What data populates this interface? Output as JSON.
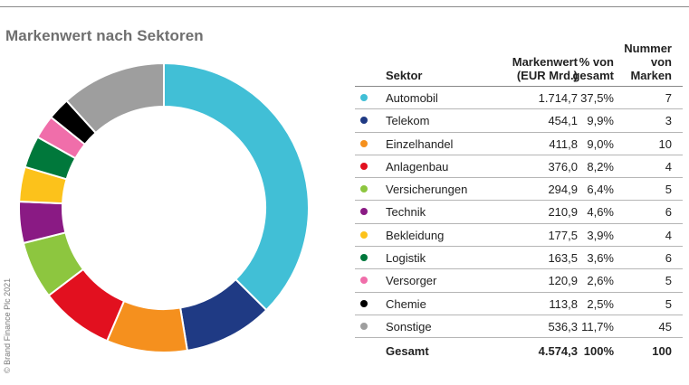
{
  "title": "Markenwert nach Sektoren",
  "copyright": "© Brand Finance Plc 2021",
  "table": {
    "headers": {
      "sektor": "Sektor",
      "markenwert_line1": "Markenwert",
      "markenwert_line2": "(EUR Mrd.)",
      "pct_line1": "% von",
      "pct_line2": "gesamt",
      "num_line1": "Nummer",
      "num_line2": "von",
      "num_line3": "Marken"
    },
    "rows": [
      {
        "name": "Automobil",
        "wert": "1.714,7",
        "pct": "37,5%",
        "num": "7",
        "color": "#41bfd6"
      },
      {
        "name": "Telekom",
        "wert": "454,1",
        "pct": "9,9%",
        "num": "3",
        "color": "#1f3a84"
      },
      {
        "name": "Einzelhandel",
        "wert": "411,8",
        "pct": "9,0%",
        "num": "10",
        "color": "#f5901e"
      },
      {
        "name": "Anlagenbau",
        "wert": "376,0",
        "pct": "8,2%",
        "num": "4",
        "color": "#e2101f"
      },
      {
        "name": "Versicherungen",
        "wert": "294,9",
        "pct": "6,4%",
        "num": "5",
        "color": "#8dc63f"
      },
      {
        "name": "Technik",
        "wert": "210,9",
        "pct": "4,6%",
        "num": "6",
        "color": "#8a1a84"
      },
      {
        "name": "Bekleidung",
        "wert": "177,5",
        "pct": "3,9%",
        "num": "4",
        "color": "#fcc21b"
      },
      {
        "name": "Logistik",
        "wert": "163,5",
        "pct": "3,6%",
        "num": "6",
        "color": "#00783b"
      },
      {
        "name": "Versorger",
        "wert": "120,9",
        "pct": "2,6%",
        "num": "5",
        "color": "#f06eaa"
      },
      {
        "name": "Chemie",
        "wert": "113,8",
        "pct": "2,5%",
        "num": "5",
        "color": "#000000"
      },
      {
        "name": "Sonstige",
        "wert": "536,3",
        "pct": "11,7%",
        "num": "45",
        "color": "#9e9e9e"
      }
    ],
    "total": {
      "name": "Gesamt",
      "wert": "4.574,3",
      "pct": "100%",
      "num": "100"
    }
  },
  "chart_data": {
    "type": "pie",
    "title": "Markenwert nach Sektoren",
    "categories": [
      "Automobil",
      "Telekom",
      "Einzelhandel",
      "Anlagenbau",
      "Versicherungen",
      "Technik",
      "Bekleidung",
      "Logistik",
      "Versorger",
      "Chemie",
      "Sonstige"
    ],
    "values": [
      1714.7,
      454.1,
      411.8,
      376.0,
      294.9,
      210.9,
      177.5,
      163.5,
      120.9,
      113.8,
      536.3
    ],
    "colors": [
      "#41bfd6",
      "#1f3a84",
      "#f5901e",
      "#e2101f",
      "#8dc63f",
      "#8a1a84",
      "#fcc21b",
      "#00783b",
      "#f06eaa",
      "#000000",
      "#9e9e9e"
    ],
    "unit": "EUR Mrd.",
    "style": "donut"
  }
}
